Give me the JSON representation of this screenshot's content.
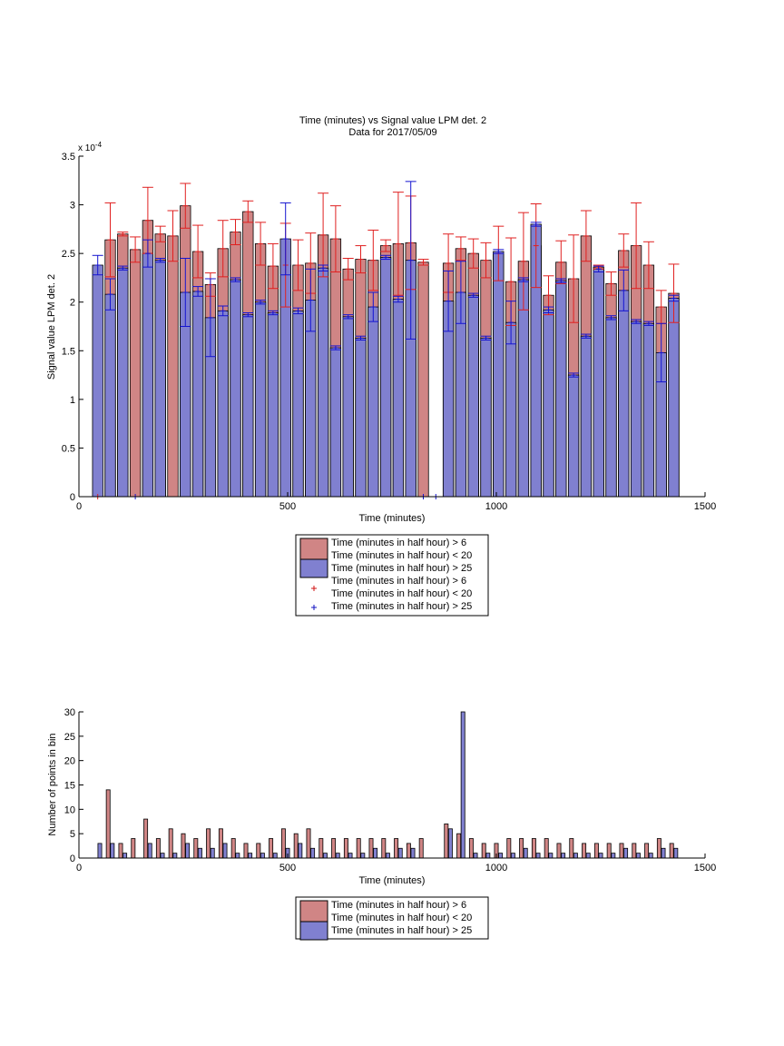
{
  "chart_data": [
    {
      "type": "bar",
      "title": "Time (minutes) vs Signal value LPM det. 2",
      "subtitle": "Data for 2017/05/09",
      "xlabel": "Time (minutes)",
      "ylabel": "Signal value LPM det. 2",
      "exponent_label": "x 10",
      "exponent_power": "-4",
      "xlim": [
        0,
        1500
      ],
      "ylim": [
        0,
        3.5
      ],
      "xticks": [
        0,
        500,
        1000,
        1500
      ],
      "yticks": [
        0,
        0.5,
        1,
        1.5,
        2,
        2.5,
        3,
        3.5
      ],
      "ytick_labels": [
        "0",
        "0.5",
        "1",
        "1.5",
        "2",
        "2.5",
        "3",
        "3.5"
      ],
      "grid": false,
      "legend_position": "below",
      "legend": [
        {
          "label": "Time (minutes in half hour) > 6",
          "label2": "Time (minutes in half hour) < 20",
          "kind": "box",
          "color": "#d08585"
        },
        {
          "label": "Time (minutes in half hour) > 25",
          "kind": "box",
          "color": "#8080d0"
        },
        {
          "label": "Time (minutes in half hour) > 6",
          "label2": "Time (minutes in half hour) < 20",
          "kind": "plus",
          "color": "#d01010"
        },
        {
          "label": "Time (minutes in half hour) > 25",
          "kind": "plus",
          "color": "#1010c0"
        }
      ],
      "bar_width": 25,
      "colors": {
        "series_a": "#d08585",
        "series_b": "#8080d0",
        "err_a": "#e02020",
        "err_b": "#1515d0"
      },
      "series": [
        {
          "name": "Time (minutes in half hour) > 6 & < 20",
          "x": [
            75,
            105,
            135,
            165,
            195,
            225,
            255,
            285,
            315,
            345,
            375,
            405,
            435,
            465,
            495,
            525,
            555,
            585,
            615,
            645,
            675,
            705,
            735,
            765,
            795,
            825,
            885,
            915,
            945,
            975,
            1005,
            1035,
            1065,
            1095,
            1125,
            1155,
            1185,
            1215,
            1245,
            1275,
            1305,
            1335,
            1365,
            1395,
            1425
          ],
          "values": [
            2.64,
            2.7,
            2.54,
            2.84,
            2.7,
            2.68,
            2.99,
            2.52,
            2.18,
            2.55,
            2.72,
            2.93,
            2.6,
            2.37,
            2.38,
            2.38,
            2.4,
            2.69,
            2.65,
            2.34,
            2.44,
            2.43,
            2.58,
            2.6,
            2.61,
            2.41,
            2.4,
            2.55,
            2.5,
            2.43,
            2.5,
            2.21,
            2.42,
            2.58,
            2.07,
            2.41,
            2.24,
            2.68,
            2.36,
            2.19,
            2.53,
            2.58,
            2.38,
            1.95,
            2.09
          ],
          "err": [
            0.38,
            0.02,
            0.13,
            0.34,
            0.08,
            0.26,
            0.23,
            0.27,
            0.12,
            0.29,
            0.13,
            0.11,
            0.22,
            0.23,
            0.43,
            0.26,
            0.31,
            0.43,
            0.34,
            0.11,
            0.14,
            0.31,
            0.06,
            0.53,
            0.48,
            0.03,
            0.3,
            0.12,
            0.15,
            0.18,
            0.28,
            0.45,
            0.5,
            0.43,
            0.2,
            0.22,
            0.45,
            0.26,
            0.02,
            0.12,
            0.17,
            0.44,
            0.24,
            0.17,
            0.3
          ]
        },
        {
          "name": "Time (minutes in half hour) > 25",
          "x": [
            45,
            75,
            105,
            165,
            195,
            255,
            285,
            315,
            345,
            375,
            405,
            435,
            465,
            495,
            525,
            555,
            585,
            615,
            645,
            675,
            705,
            735,
            765,
            795,
            885,
            915,
            945,
            975,
            1005,
            1035,
            1065,
            1095,
            1125,
            1155,
            1185,
            1215,
            1245,
            1275,
            1305,
            1335,
            1365,
            1395,
            1425
          ],
          "values": [
            2.38,
            2.08,
            2.35,
            2.5,
            2.43,
            2.1,
            2.11,
            1.84,
            1.91,
            2.23,
            1.87,
            2.0,
            1.89,
            2.65,
            1.91,
            2.02,
            2.35,
            1.53,
            1.85,
            1.63,
            1.95,
            2.46,
            2.03,
            2.43,
            2.01,
            2.1,
            2.07,
            1.63,
            2.52,
            1.79,
            2.23,
            2.8,
            1.92,
            2.22,
            1.25,
            1.65,
            2.34,
            1.84,
            2.12,
            1.8,
            1.78,
            1.48,
            2.04
          ],
          "err": [
            0.1,
            0.16,
            0.02,
            0.14,
            0.02,
            0.35,
            0.05,
            0.4,
            0.05,
            0.02,
            0.02,
            0.02,
            0.02,
            0.37,
            0.03,
            0.32,
            0.03,
            0.02,
            0.02,
            0.02,
            0.15,
            0.02,
            0.03,
            0.81,
            0.31,
            0.32,
            0.02,
            0.02,
            0.02,
            0.22,
            0.02,
            0.02,
            0.03,
            0.02,
            0.02,
            0.02,
            0.03,
            0.02,
            0.21,
            0.02,
            0.02,
            0.3,
            0.03
          ]
        }
      ],
      "zero_markers_a": [
        45
      ],
      "zero_markers_b": [
        135,
        825,
        855
      ]
    },
    {
      "type": "bar",
      "title": "",
      "xlabel": "Time (minutes)",
      "ylabel": "Number of points in bin",
      "xlim": [
        0,
        1500
      ],
      "ylim": [
        0,
        30
      ],
      "xticks": [
        0,
        500,
        1000,
        1500
      ],
      "yticks": [
        0,
        5,
        10,
        15,
        20,
        25,
        30
      ],
      "grid": false,
      "legend_position": "below",
      "legend": [
        {
          "label": "Time (minutes in half hour) > 6",
          "label2": "Time (minutes in half hour) < 20",
          "kind": "box",
          "color": "#d08585"
        },
        {
          "label": "Time (minutes in half hour) > 25",
          "kind": "box",
          "color": "#8080d0"
        }
      ],
      "bar_width": 9,
      "colors": {
        "series_a": "#d08585",
        "series_b": "#8080d0"
      },
      "series": [
        {
          "name": "Time (minutes in half hour) > 6 & < 20",
          "x": [
            70,
            100,
            130,
            160,
            190,
            220,
            250,
            280,
            310,
            340,
            370,
            400,
            430,
            460,
            490,
            520,
            550,
            580,
            610,
            640,
            670,
            700,
            730,
            760,
            790,
            820,
            880,
            910,
            940,
            970,
            1000,
            1030,
            1060,
            1090,
            1120,
            1150,
            1180,
            1210,
            1240,
            1270,
            1300,
            1330,
            1360,
            1390,
            1420
          ],
          "values": [
            14,
            3,
            4,
            8,
            4,
            6,
            5,
            4,
            6,
            6,
            4,
            3,
            3,
            4,
            6,
            5,
            6,
            4,
            4,
            4,
            4,
            4,
            4,
            4,
            3,
            4,
            7,
            5,
            4,
            3,
            3,
            4,
            4,
            4,
            4,
            3,
            4,
            3,
            3,
            3,
            3,
            3,
            3,
            4,
            3
          ]
        },
        {
          "name": "Time (minutes in half hour) > 25",
          "x": [
            50,
            80,
            110,
            170,
            200,
            230,
            260,
            290,
            320,
            350,
            380,
            410,
            440,
            470,
            500,
            530,
            560,
            590,
            620,
            650,
            680,
            710,
            740,
            770,
            800,
            890,
            920,
            950,
            980,
            1010,
            1040,
            1070,
            1100,
            1130,
            1160,
            1190,
            1220,
            1250,
            1280,
            1310,
            1340,
            1370,
            1400,
            1430
          ],
          "values": [
            3,
            3,
            1,
            3,
            1,
            1,
            3,
            2,
            2,
            3,
            1,
            1,
            1,
            1,
            2,
            3,
            2,
            1,
            1,
            1,
            1,
            2,
            1,
            2,
            2,
            6,
            30,
            1,
            1,
            1,
            1,
            2,
            1,
            1,
            1,
            1,
            1,
            1,
            1,
            2,
            1,
            1,
            2,
            2
          ]
        }
      ]
    }
  ]
}
